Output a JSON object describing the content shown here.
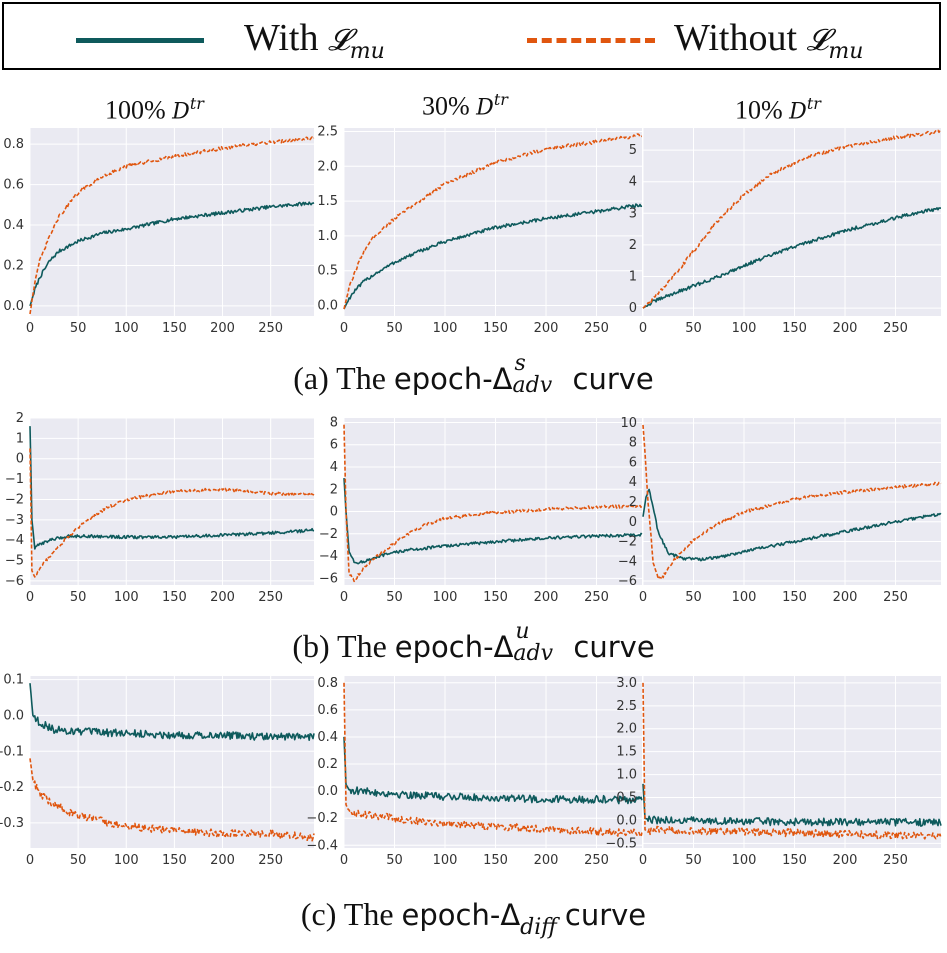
{
  "legend": {
    "with_label": "With",
    "without_label": "Without",
    "loss_symbol": "𝓛",
    "loss_subscript": "mu",
    "with_color": "#0e5a5c",
    "without_color": "#e0560f"
  },
  "columns": [
    {
      "percent": "100%",
      "symbol": "D",
      "sup": "tr"
    },
    {
      "percent": "30%",
      "symbol": "D",
      "sup": "tr"
    },
    {
      "percent": "10%",
      "symbol": "D",
      "sup": "tr"
    }
  ],
  "captions": [
    {
      "prefix": "(a) The",
      "word": "epoch-Δ",
      "sup": "s",
      "sub": "adv",
      "suffix": "curve"
    },
    {
      "prefix": "(b) The",
      "word": "epoch-Δ",
      "sup": "u",
      "sub": "adv",
      "suffix": "curve"
    },
    {
      "prefix": "(c) The",
      "word": "epoch-Δ",
      "sup": "",
      "sub": "diff",
      "suffix": "curve"
    }
  ],
  "chart_data": [
    {
      "type": "line",
      "row": "a",
      "column": "100% D^tr",
      "xlim": [
        0,
        295
      ],
      "ylim": [
        -0.05,
        0.88
      ],
      "xticks": [
        0,
        50,
        100,
        150,
        200,
        250
      ],
      "yticks": [
        0.0,
        0.2,
        0.4,
        0.6,
        0.8
      ],
      "ytick_labels": [
        "0.0",
        "0.2",
        "0.4",
        "0.6",
        "0.8"
      ],
      "series": [
        {
          "name": "With L_mu",
          "style": "solid",
          "x": [
            0,
            5,
            10,
            20,
            30,
            50,
            75,
            100,
            150,
            200,
            250,
            295
          ],
          "y": [
            0.0,
            0.08,
            0.14,
            0.22,
            0.27,
            0.32,
            0.36,
            0.38,
            0.43,
            0.46,
            0.49,
            0.51
          ]
        },
        {
          "name": "Without L_mu",
          "style": "dashed",
          "x": [
            0,
            5,
            10,
            20,
            30,
            50,
            75,
            100,
            150,
            200,
            250,
            295
          ],
          "y": [
            -0.04,
            0.12,
            0.22,
            0.34,
            0.44,
            0.56,
            0.64,
            0.69,
            0.74,
            0.78,
            0.81,
            0.83
          ]
        }
      ]
    },
    {
      "type": "line",
      "row": "a",
      "column": "30% D^tr",
      "xlim": [
        0,
        295
      ],
      "ylim": [
        -0.15,
        2.55
      ],
      "xticks": [
        0,
        50,
        100,
        150,
        200,
        250
      ],
      "yticks": [
        0.0,
        0.5,
        1.0,
        1.5,
        2.0,
        2.5
      ],
      "ytick_labels": [
        "0.0",
        "0.5",
        "1.0",
        "1.5",
        "2.0",
        "2.5"
      ],
      "series": [
        {
          "name": "With L_mu",
          "style": "solid",
          "x": [
            0,
            5,
            10,
            20,
            30,
            50,
            75,
            100,
            150,
            200,
            250,
            295
          ],
          "y": [
            -0.05,
            0.1,
            0.2,
            0.35,
            0.45,
            0.62,
            0.78,
            0.92,
            1.12,
            1.25,
            1.35,
            1.45
          ]
        },
        {
          "name": "Without L_mu",
          "style": "dashed",
          "x": [
            0,
            5,
            10,
            20,
            30,
            50,
            75,
            100,
            150,
            200,
            250,
            295
          ],
          "y": [
            -0.05,
            0.25,
            0.45,
            0.8,
            1.0,
            1.25,
            1.5,
            1.75,
            2.05,
            2.25,
            2.35,
            2.45
          ]
        }
      ]
    },
    {
      "type": "line",
      "row": "a",
      "column": "10% D^tr",
      "xlim": [
        0,
        295
      ],
      "ylim": [
        -0.25,
        5.7
      ],
      "xticks": [
        0,
        50,
        100,
        150,
        200,
        250
      ],
      "yticks": [
        0,
        1,
        2,
        3,
        4,
        5
      ],
      "ytick_labels": [
        "0",
        "1",
        "2",
        "3",
        "4",
        "5"
      ],
      "series": [
        {
          "name": "With L_mu",
          "style": "solid",
          "x": [
            0,
            10,
            25,
            50,
            75,
            100,
            125,
            150,
            175,
            200,
            225,
            250,
            275,
            295
          ],
          "y": [
            0.0,
            0.2,
            0.4,
            0.7,
            1.0,
            1.35,
            1.65,
            1.95,
            2.2,
            2.45,
            2.65,
            2.85,
            3.05,
            3.15
          ]
        },
        {
          "name": "Without L_mu",
          "style": "dashed",
          "x": [
            0,
            10,
            25,
            50,
            75,
            100,
            125,
            150,
            175,
            200,
            225,
            250,
            275,
            295
          ],
          "y": [
            0.0,
            0.3,
            0.8,
            1.8,
            2.8,
            3.6,
            4.2,
            4.6,
            4.9,
            5.1,
            5.25,
            5.4,
            5.5,
            5.6
          ]
        }
      ]
    },
    {
      "type": "line",
      "row": "b",
      "column": "100% D^tr",
      "xlim": [
        0,
        295
      ],
      "ylim": [
        -6.2,
        2.0
      ],
      "xticks": [
        0,
        50,
        100,
        150,
        200,
        250
      ],
      "yticks": [
        2,
        1,
        0,
        -1,
        -2,
        -3,
        -4,
        -5,
        -6
      ],
      "ytick_labels": [
        "2",
        "1",
        "0",
        "−1",
        "−2",
        "−3",
        "−4",
        "−5",
        "−6"
      ],
      "series": [
        {
          "name": "With L_mu",
          "style": "solid",
          "x": [
            0,
            2,
            5,
            10,
            20,
            40,
            60,
            100,
            150,
            200,
            250,
            295
          ],
          "y": [
            1.6,
            -3.0,
            -4.4,
            -4.2,
            -4.0,
            -3.8,
            -3.8,
            -3.85,
            -3.85,
            -3.75,
            -3.65,
            -3.5
          ]
        },
        {
          "name": "Without L_mu",
          "style": "dashed",
          "x": [
            0,
            2,
            5,
            10,
            20,
            40,
            60,
            80,
            100,
            150,
            200,
            250,
            295
          ],
          "y": [
            0.5,
            -5.5,
            -5.8,
            -5.4,
            -4.8,
            -3.8,
            -3.0,
            -2.4,
            -2.0,
            -1.6,
            -1.5,
            -1.7,
            -1.75
          ]
        }
      ]
    },
    {
      "type": "line",
      "row": "b",
      "column": "30% D^tr",
      "xlim": [
        0,
        295
      ],
      "ylim": [
        -6.6,
        8.4
      ],
      "xticks": [
        0,
        50,
        100,
        150,
        200,
        250
      ],
      "yticks": [
        8,
        6,
        4,
        2,
        0,
        -2,
        -4,
        -6
      ],
      "ytick_labels": [
        "8",
        "6",
        "4",
        "2",
        "0",
        "−2",
        "−4",
        "−6"
      ],
      "series": [
        {
          "name": "With L_mu",
          "style": "solid",
          "x": [
            0,
            2,
            5,
            10,
            20,
            40,
            60,
            100,
            150,
            200,
            250,
            295
          ],
          "y": [
            3.0,
            0.0,
            -3.5,
            -4.6,
            -4.5,
            -3.9,
            -3.5,
            -3.1,
            -2.7,
            -2.4,
            -2.2,
            -2.1
          ]
        },
        {
          "name": "Without L_mu",
          "style": "dashed",
          "x": [
            0,
            2,
            5,
            10,
            20,
            40,
            60,
            80,
            100,
            150,
            200,
            250,
            295
          ],
          "y": [
            7.8,
            0.0,
            -5.5,
            -6.2,
            -5.0,
            -3.5,
            -2.2,
            -1.2,
            -0.6,
            -0.1,
            0.2,
            0.4,
            0.5
          ]
        }
      ]
    },
    {
      "type": "line",
      "row": "b",
      "column": "10% D^tr",
      "xlim": [
        0,
        295
      ],
      "ylim": [
        -6.4,
        10.5
      ],
      "xticks": [
        0,
        50,
        100,
        150,
        200,
        250
      ],
      "yticks": [
        10,
        8,
        6,
        4,
        2,
        0,
        -2,
        -4,
        -6
      ],
      "ytick_labels": [
        "10",
        "8",
        "6",
        "4",
        "2",
        "0",
        "−2",
        "−4",
        "−6"
      ],
      "series": [
        {
          "name": "With L_mu",
          "style": "solid",
          "x": [
            0,
            3,
            6,
            10,
            15,
            25,
            40,
            60,
            80,
            100,
            150,
            200,
            250,
            295
          ],
          "y": [
            0.5,
            2.5,
            3.2,
            1.5,
            -1.0,
            -3.2,
            -3.7,
            -3.8,
            -3.5,
            -3.0,
            -2.0,
            -1.0,
            0.0,
            0.8
          ]
        },
        {
          "name": "Without L_mu",
          "style": "dashed",
          "x": [
            0,
            2,
            5,
            10,
            15,
            20,
            30,
            50,
            75,
            100,
            150,
            200,
            250,
            295
          ],
          "y": [
            9.8,
            7.0,
            2.0,
            -4.0,
            -5.8,
            -5.5,
            -4.0,
            -1.8,
            -0.2,
            1.0,
            2.3,
            3.0,
            3.5,
            3.9
          ]
        }
      ]
    },
    {
      "type": "line",
      "row": "c",
      "column": "100% D^tr",
      "xlim": [
        0,
        295
      ],
      "ylim": [
        -0.37,
        0.11
      ],
      "xticks": [
        0,
        50,
        100,
        150,
        200,
        250
      ],
      "yticks": [
        0.1,
        0.0,
        -0.1,
        -0.2,
        -0.3
      ],
      "ytick_labels": [
        "0.1",
        "0.0",
        "-0.1",
        "-0.2",
        "-0.3"
      ],
      "series": [
        {
          "name": "With L_mu",
          "style": "solid",
          "x": [
            0,
            3,
            10,
            25,
            50,
            100,
            150,
            200,
            250,
            295
          ],
          "y": [
            0.09,
            0.0,
            -0.02,
            -0.04,
            -0.045,
            -0.05,
            -0.055,
            -0.055,
            -0.06,
            -0.06
          ]
        },
        {
          "name": "Without L_mu",
          "style": "dashed",
          "x": [
            0,
            3,
            10,
            25,
            50,
            100,
            150,
            200,
            250,
            295
          ],
          "y": [
            -0.12,
            -0.18,
            -0.22,
            -0.25,
            -0.28,
            -0.31,
            -0.32,
            -0.33,
            -0.33,
            -0.34
          ]
        }
      ]
    },
    {
      "type": "line",
      "row": "c",
      "column": "30% D^tr",
      "xlim": [
        0,
        295
      ],
      "ylim": [
        -0.42,
        0.85
      ],
      "xticks": [
        0,
        50,
        100,
        150,
        200,
        250
      ],
      "yticks": [
        0.8,
        0.6,
        0.4,
        0.2,
        0.0,
        -0.2,
        -0.4
      ],
      "ytick_labels": [
        "0.8",
        "0.6",
        "0.4",
        "0.2",
        "0.0",
        "−0.2",
        "−0.4"
      ],
      "series": [
        {
          "name": "With L_mu",
          "style": "solid",
          "x": [
            0,
            2,
            5,
            15,
            50,
            100,
            150,
            200,
            250,
            295
          ],
          "y": [
            0.4,
            0.05,
            0.01,
            0.0,
            -0.02,
            -0.04,
            -0.05,
            -0.06,
            -0.06,
            -0.07
          ]
        },
        {
          "name": "Without L_mu",
          "style": "dashed",
          "x": [
            0,
            2,
            5,
            15,
            50,
            100,
            150,
            200,
            250,
            295
          ],
          "y": [
            0.8,
            -0.1,
            -0.15,
            -0.17,
            -0.2,
            -0.24,
            -0.26,
            -0.28,
            -0.3,
            -0.31
          ]
        }
      ]
    },
    {
      "type": "line",
      "row": "c",
      "column": "10% D^tr",
      "xlim": [
        0,
        295
      ],
      "ylim": [
        -0.6,
        3.15
      ],
      "xticks": [
        0,
        50,
        100,
        150,
        200,
        250
      ],
      "yticks": [
        3.0,
        2.5,
        2.0,
        1.5,
        1.0,
        0.5,
        0.0,
        -0.5
      ],
      "ytick_labels": [
        "3.0",
        "2.5",
        "2.0",
        "1.5",
        "1.0",
        "0.5",
        "0.0",
        "−0.5"
      ],
      "series": [
        {
          "name": "With L_mu",
          "style": "solid",
          "x": [
            0,
            2,
            5,
            15,
            50,
            100,
            150,
            200,
            250,
            295
          ],
          "y": [
            0.8,
            0.05,
            0.02,
            0.0,
            0.0,
            -0.02,
            -0.03,
            -0.03,
            -0.04,
            -0.05
          ]
        },
        {
          "name": "Without L_mu",
          "style": "dashed",
          "x": [
            0,
            2,
            5,
            15,
            50,
            100,
            150,
            200,
            250,
            295
          ],
          "y": [
            3.0,
            -0.2,
            -0.25,
            -0.2,
            -0.22,
            -0.25,
            -0.27,
            -0.3,
            -0.32,
            -0.33
          ]
        }
      ]
    }
  ]
}
